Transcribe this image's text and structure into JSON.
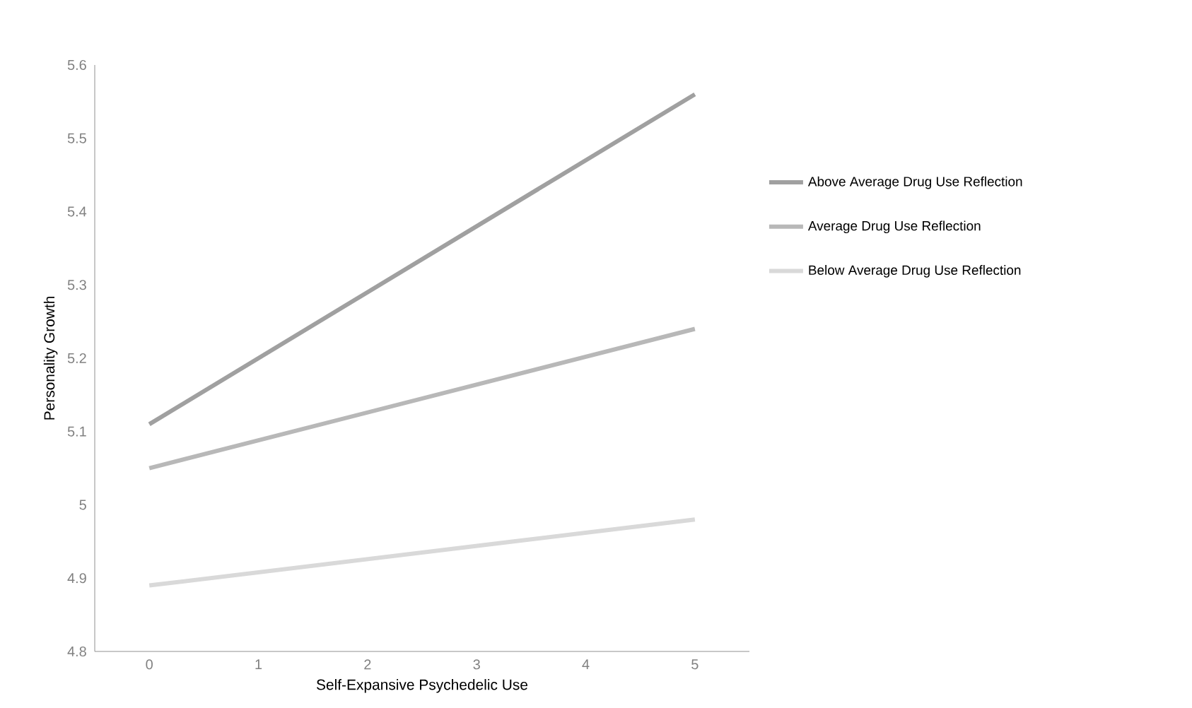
{
  "chart_data": {
    "type": "line",
    "xlabel": "Self-Expansive Psychedelic Use",
    "ylabel": "Personality Growth",
    "categories": [
      "0",
      "1",
      "2",
      "3",
      "4",
      "5"
    ],
    "series": [
      {
        "name": "Above Average Drug Use Reflection",
        "color": "#a0a0a0",
        "values": [
          5.11,
          null,
          null,
          null,
          null,
          5.56
        ]
      },
      {
        "name": "Average Drug Use Reflection",
        "color": "#b8b8b8",
        "values": [
          5.05,
          null,
          null,
          null,
          null,
          5.24
        ]
      },
      {
        "name": "Below Average Drug Use Reflection",
        "color": "#d9d9d9",
        "values": [
          4.89,
          null,
          null,
          null,
          null,
          4.98
        ]
      }
    ],
    "ylim": [
      4.8,
      5.6
    ],
    "yticks": [
      4.8,
      4.9,
      5,
      5.1,
      5.2,
      5.3,
      5.4,
      5.5,
      5.6
    ],
    "legend": "right",
    "marker": "none",
    "line_style": "solid",
    "grid": false
  }
}
